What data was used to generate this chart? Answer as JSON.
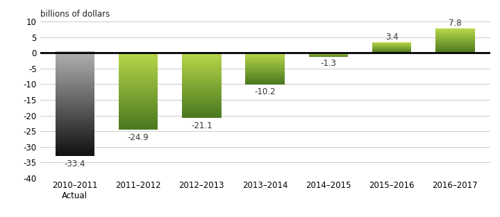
{
  "categories": [
    "2010–2011\nActual",
    "2011–2012",
    "2012–2013",
    "2013–2014",
    "2014–2015",
    "2015–2016",
    "2016–2017"
  ],
  "values": [
    -33.4,
    -24.9,
    -21.1,
    -10.2,
    -1.3,
    3.4,
    7.8
  ],
  "gray_top": "#b0b0b0",
  "gray_bottom": "#111111",
  "green_top": "#b8d84a",
  "green_bottom": "#4a7820",
  "ylabel": "billions of dollars",
  "ylim": [
    -40,
    10
  ],
  "yticks": [
    -40,
    -35,
    -30,
    -25,
    -20,
    -15,
    -10,
    -5,
    0,
    5,
    10
  ],
  "background_color": "#ffffff",
  "grid_color": "#cccccc",
  "label_fontsize": 8.5,
  "axis_fontsize": 8.5
}
